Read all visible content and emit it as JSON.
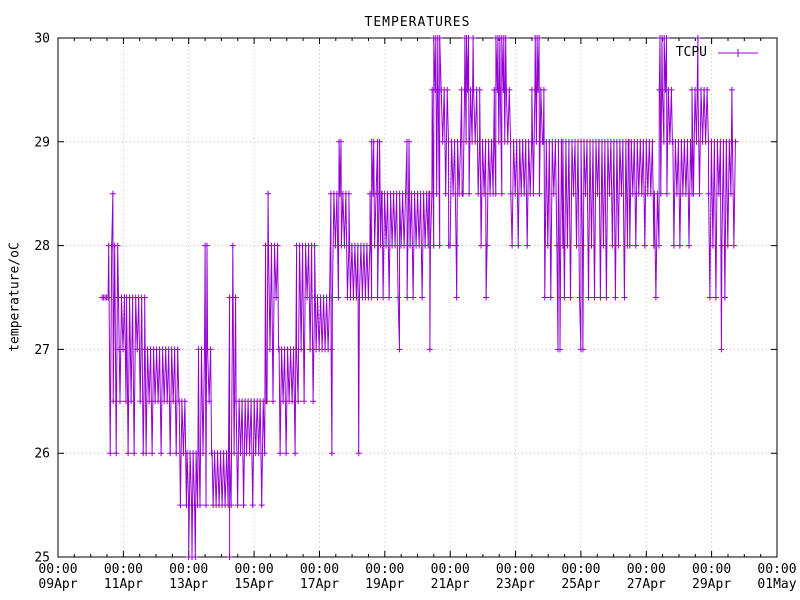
{
  "background": "#ffffff",
  "chart_data": {
    "type": "line",
    "title": "TEMPERATURES",
    "xlabel": "",
    "ylabel": "temperature/oC",
    "ylim": [
      25,
      30
    ],
    "xlim_days": [
      0,
      22
    ],
    "x_start": "09Apr 00:00",
    "x_end": "01May 00:00",
    "x_minor_tick_hours": 12,
    "grid": "dotted gray at major ticks",
    "grid_color": "#c0c0c0",
    "y_ticks": [
      25,
      26,
      27,
      28,
      29,
      30
    ],
    "x_ticks": [
      {
        "day": 0,
        "time": "00:00",
        "date": "09Apr"
      },
      {
        "day": 2,
        "time": "00:00",
        "date": "11Apr"
      },
      {
        "day": 4,
        "time": "00:00",
        "date": "13Apr"
      },
      {
        "day": 6,
        "time": "00:00",
        "date": "15Apr"
      },
      {
        "day": 8,
        "time": "00:00",
        "date": "17Apr"
      },
      {
        "day": 10,
        "time": "00:00",
        "date": "19Apr"
      },
      {
        "day": 12,
        "time": "00:00",
        "date": "21Apr"
      },
      {
        "day": 14,
        "time": "00:00",
        "date": "23Apr"
      },
      {
        "day": 16,
        "time": "00:00",
        "date": "25Apr"
      },
      {
        "day": 18,
        "time": "00:00",
        "date": "27Apr"
      },
      {
        "day": 20,
        "time": "00:00",
        "date": "29Apr"
      },
      {
        "day": 22,
        "time": "00:00",
        "date": "01May"
      }
    ],
    "legend": {
      "label": "TCPU",
      "position": "top-right",
      "style": "line with plus marker"
    },
    "series": [
      {
        "name": "TCPU",
        "color": "#9400d3",
        "marker": "plus",
        "line_style": "solid 1px, linespoints",
        "quantization_step_C": 0.5,
        "time_unit": "days since 09Apr 00:00",
        "data_start_day": 1.35,
        "data_end_day": 20.72,
        "segments_note": "oscillation bands read from plot: [day_start, day_end, low_C, high_C]",
        "segments": [
          [
            1.35,
            1.55,
            27.5,
            27.5
          ],
          [
            1.55,
            1.85,
            26.0,
            28.0
          ],
          [
            1.85,
            2.1,
            26.5,
            27.5
          ],
          [
            2.1,
            2.65,
            26.0,
            27.5
          ],
          [
            2.65,
            3.7,
            26.0,
            27.0
          ],
          [
            3.7,
            3.95,
            25.5,
            26.5
          ],
          [
            3.95,
            4.3,
            25.5,
            26.0
          ],
          [
            4.3,
            4.7,
            25.5,
            27.0
          ],
          [
            4.7,
            5.25,
            25.5,
            26.0
          ],
          [
            5.25,
            5.45,
            25.5,
            27.5
          ],
          [
            5.45,
            6.35,
            25.5,
            26.5
          ],
          [
            6.35,
            6.75,
            26.5,
            28.0
          ],
          [
            6.75,
            7.3,
            26.0,
            27.0
          ],
          [
            7.3,
            7.85,
            26.5,
            28.0
          ],
          [
            7.85,
            8.35,
            27.0,
            27.5
          ],
          [
            8.35,
            8.9,
            27.5,
            28.5
          ],
          [
            8.9,
            9.55,
            27.5,
            28.0
          ],
          [
            9.55,
            9.9,
            27.5,
            28.5
          ],
          [
            9.9,
            11.35,
            27.5,
            28.5
          ],
          [
            11.35,
            11.45,
            28.0,
            28.5
          ],
          [
            11.45,
            11.95,
            28.0,
            29.5
          ],
          [
            11.95,
            12.35,
            28.0,
            29.0
          ],
          [
            12.35,
            12.9,
            28.5,
            29.5
          ],
          [
            12.9,
            13.35,
            28.0,
            29.0
          ],
          [
            13.35,
            13.85,
            28.5,
            29.5
          ],
          [
            13.85,
            14.5,
            28.0,
            29.0
          ],
          [
            14.5,
            14.85,
            28.5,
            29.5
          ],
          [
            14.85,
            15.45,
            27.5,
            29.0
          ],
          [
            15.45,
            16.55,
            27.5,
            29.0
          ],
          [
            16.55,
            17.45,
            27.5,
            29.0
          ],
          [
            17.45,
            18.25,
            28.0,
            29.0
          ],
          [
            18.25,
            18.4,
            27.5,
            28.5
          ],
          [
            18.4,
            18.8,
            28.5,
            29.5
          ],
          [
            18.8,
            19.4,
            28.0,
            29.0
          ],
          [
            19.4,
            19.9,
            28.5,
            29.5
          ],
          [
            19.9,
            20.45,
            27.5,
            29.0
          ],
          [
            20.45,
            20.72,
            28.0,
            29.0
          ]
        ],
        "events_note": "isolated spikes/dips: [day, temperature_C]",
        "events": [
          [
            1.68,
            28.5
          ],
          [
            4.0,
            25.0
          ],
          [
            4.1,
            25.0
          ],
          [
            4.2,
            25.0
          ],
          [
            4.5,
            28.0
          ],
          [
            4.56,
            28.0
          ],
          [
            5.25,
            25.0
          ],
          [
            5.35,
            28.0
          ],
          [
            6.43,
            28.5
          ],
          [
            8.38,
            26.0
          ],
          [
            8.6,
            29.0
          ],
          [
            8.66,
            29.0
          ],
          [
            9.2,
            26.0
          ],
          [
            9.6,
            29.0
          ],
          [
            9.66,
            29.0
          ],
          [
            9.78,
            29.0
          ],
          [
            9.84,
            29.0
          ],
          [
            10.45,
            27.0
          ],
          [
            10.68,
            29.0
          ],
          [
            10.74,
            29.0
          ],
          [
            11.38,
            27.0
          ],
          [
            11.5,
            30.0
          ],
          [
            11.56,
            30.0
          ],
          [
            11.62,
            30.0
          ],
          [
            11.68,
            30.0
          ],
          [
            12.2,
            27.5
          ],
          [
            12.45,
            30.0
          ],
          [
            12.5,
            30.0
          ],
          [
            12.56,
            30.0
          ],
          [
            12.7,
            30.0
          ],
          [
            13.1,
            27.5
          ],
          [
            13.4,
            30.0
          ],
          [
            13.46,
            30.0
          ],
          [
            13.52,
            30.0
          ],
          [
            13.58,
            30.0
          ],
          [
            13.64,
            30.0
          ],
          [
            13.7,
            30.0
          ],
          [
            14.6,
            30.0
          ],
          [
            14.66,
            30.0
          ],
          [
            14.72,
            30.0
          ],
          [
            15.3,
            27.0
          ],
          [
            15.36,
            27.0
          ],
          [
            16.0,
            27.0
          ],
          [
            16.06,
            27.0
          ],
          [
            18.42,
            30.0
          ],
          [
            18.48,
            30.0
          ],
          [
            18.55,
            30.0
          ],
          [
            18.62,
            30.0
          ],
          [
            19.58,
            30.0
          ],
          [
            20.3,
            27.0
          ],
          [
            20.62,
            29.5
          ]
        ]
      }
    ]
  }
}
